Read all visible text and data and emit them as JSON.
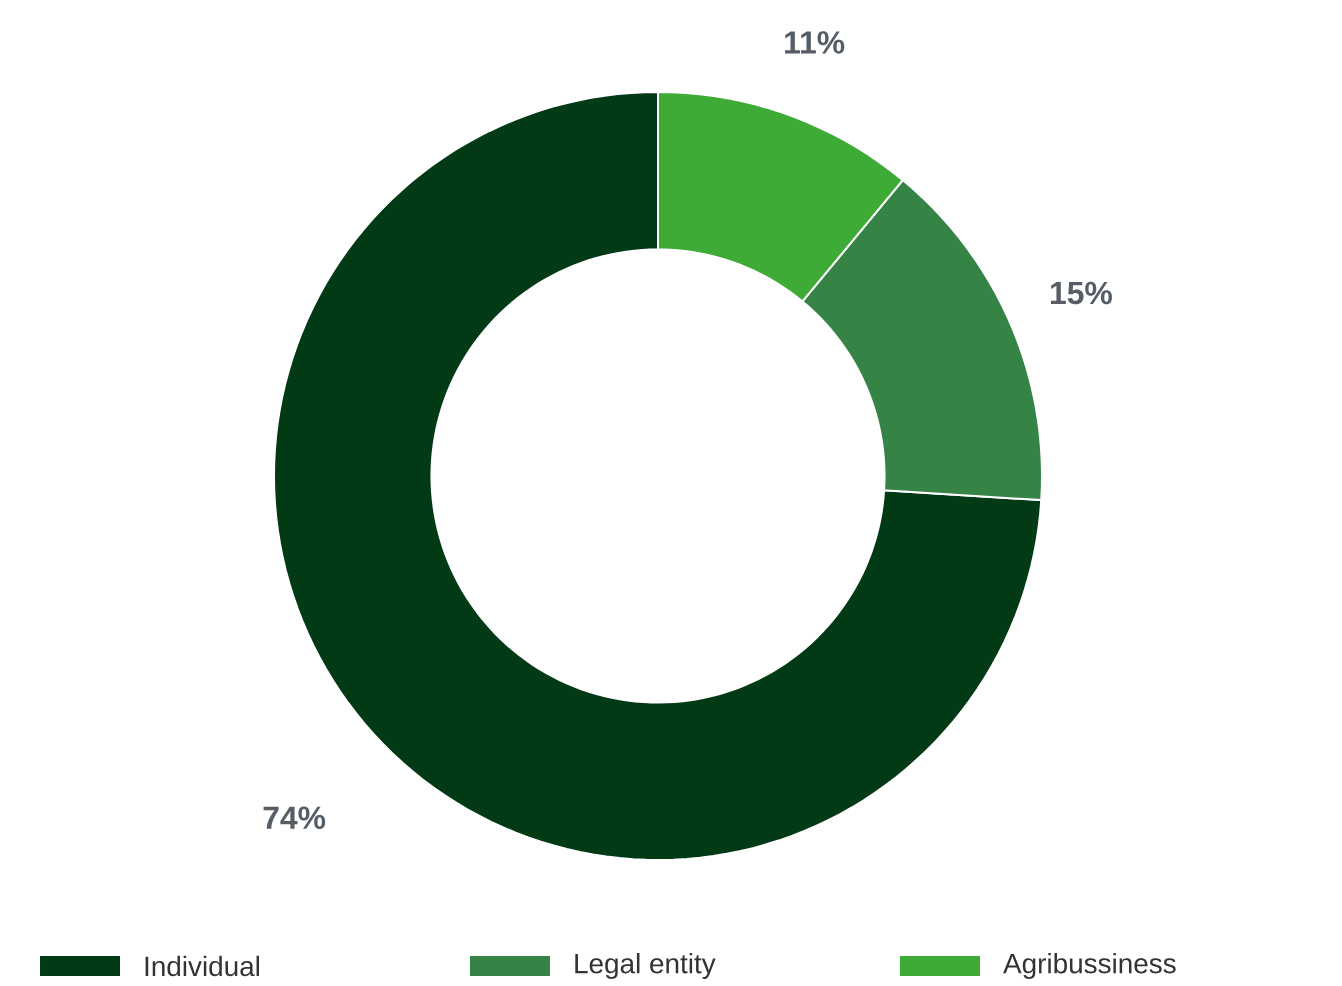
{
  "chart_data": {
    "type": "donut",
    "categories": [
      "Individual",
      "Legal entity",
      "Agribussiness"
    ],
    "values": [
      74,
      15,
      11
    ],
    "colors": [
      "#033a16",
      "#358446",
      "#3dab35"
    ],
    "value_labels": [
      "74%",
      "15%",
      "11%"
    ],
    "legend": "bottom"
  }
}
